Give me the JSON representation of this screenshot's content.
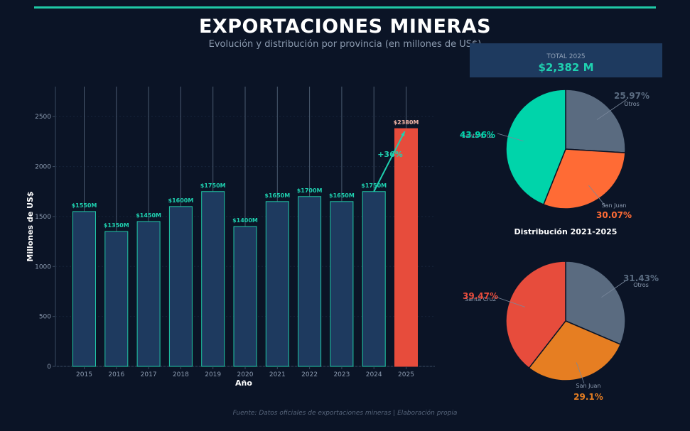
{
  "header": {
    "title": "EXPORTACIONES MINERAS",
    "subtitle": "Evolución y distribución por provincia (en millones de US$)"
  },
  "total": {
    "label": "TOTAL 2025",
    "value": "$2,382 M"
  },
  "footer": {
    "source": "Fuente: Datos oficiales de exportaciones mineras | Elaboración propia"
  },
  "colors": {
    "background": "#0b1426",
    "bar_fill": "#1e3a5f",
    "bar_stroke": "#1fc9a6",
    "highlight_bar": "#e74c3c",
    "accent": "#1fd1b0"
  },
  "chart_data": [
    {
      "type": "bar",
      "categories": [
        "2015",
        "2016",
        "2017",
        "2018",
        "2019",
        "2020",
        "2021",
        "2022",
        "2023",
        "2024",
        "2025"
      ],
      "values": [
        1550,
        1350,
        1450,
        1600,
        1750,
        1400,
        1650,
        1700,
        1650,
        1750,
        2380
      ],
      "data_labels": [
        "$1550M",
        "$1350M",
        "$1450M",
        "$1600M",
        "$1750M",
        "$1400M",
        "$1650M",
        "$1700M",
        "$1650M",
        "$1750M",
        "$2380M"
      ],
      "xlabel": "Año",
      "ylabel": "Millones de US$",
      "ylim": [
        0,
        2800
      ],
      "yticks": [
        0,
        500,
        1000,
        1500,
        2000,
        2500
      ],
      "highlight_index": 10,
      "annotation": {
        "text": "+36%",
        "from": "2024",
        "to": "2025"
      },
      "grid": true
    },
    {
      "type": "pie",
      "labels": [
        "Otros",
        "San Juan",
        "Santa Cruz"
      ],
      "values": [
        25.97,
        30.07,
        43.96
      ],
      "pct_labels": [
        "25.97%",
        "30.07%",
        "43.96%"
      ],
      "colors": [
        "#5a6b80",
        "#ff6b35",
        "#00d4aa"
      ]
    },
    {
      "type": "pie",
      "title": "Distribución 2021-2025",
      "labels": [
        "Otros",
        "San Juan",
        "Santa Cruz"
      ],
      "values": [
        31.43,
        29.1,
        39.47
      ],
      "pct_labels": [
        "31.43%",
        "29.1%",
        "39.47%"
      ],
      "colors": [
        "#5a6b80",
        "#e67e22",
        "#e74c3c"
      ]
    }
  ]
}
